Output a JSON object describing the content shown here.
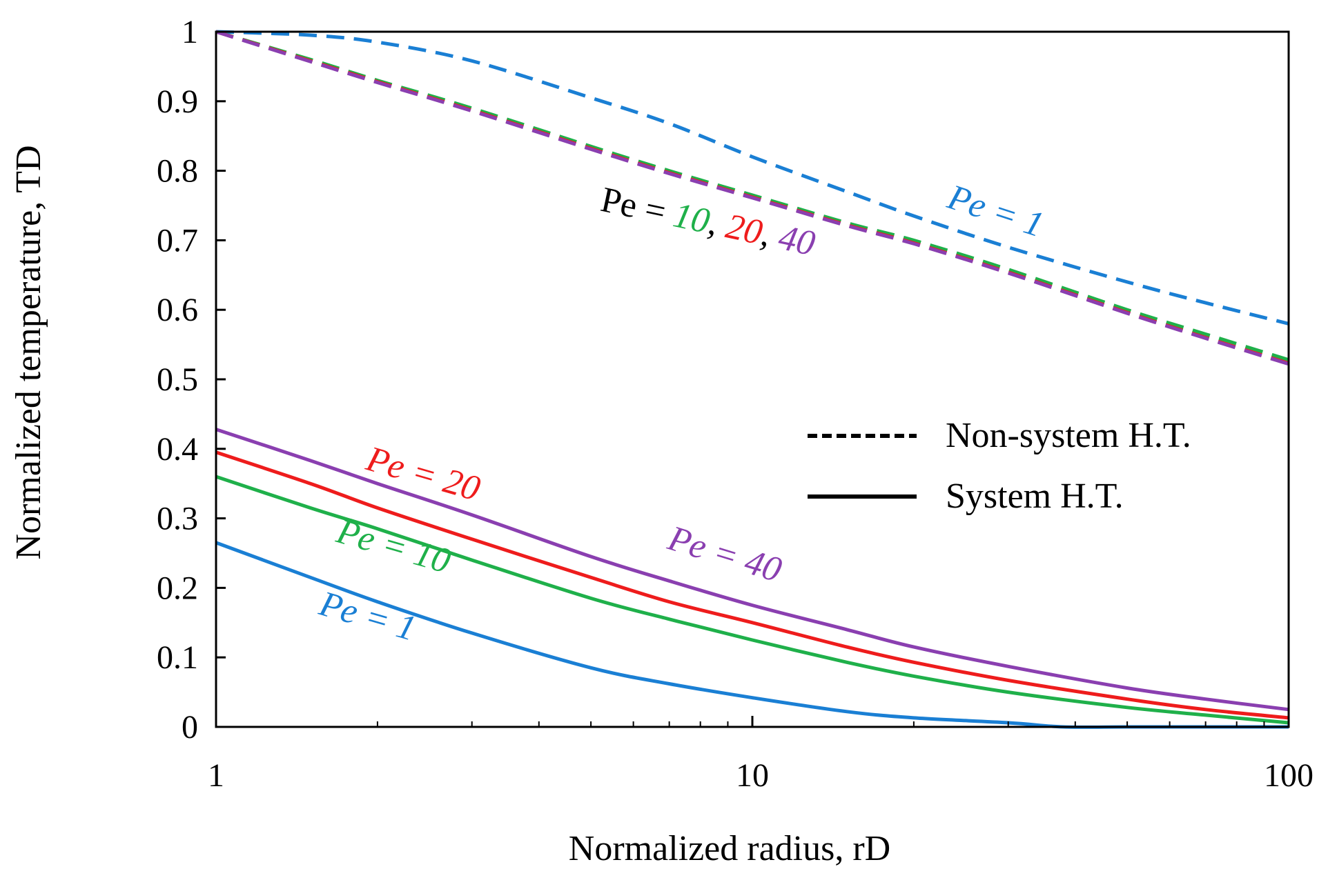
{
  "chart_data": {
    "type": "line",
    "xlabel": "Normalized radius, rD",
    "ylabel": "Normalized temperature, TD",
    "xscale": "log",
    "xlim": [
      1,
      100
    ],
    "ylim": [
      0,
      1
    ],
    "xticks": [
      "1",
      "10",
      "100"
    ],
    "yticks": [
      "0",
      "0.1",
      "0.2",
      "0.3",
      "0.4",
      "0.5",
      "0.6",
      "0.7",
      "0.8",
      "0.9",
      "1"
    ],
    "legend": {
      "placement": "center-right",
      "entries": [
        {
          "label": "Non-system H.T.",
          "style": "dashed"
        },
        {
          "label": "System H.T.",
          "style": "solid"
        }
      ]
    },
    "series": [
      {
        "name": "Non-system H.T., Pe = 1",
        "style": "dashed",
        "color": "#1a7fd4",
        "x": [
          1,
          1.5,
          2,
          3,
          5,
          7,
          10,
          15,
          20,
          30,
          50,
          70,
          100
        ],
        "y": [
          1.0,
          0.995,
          0.985,
          0.958,
          0.905,
          0.868,
          0.82,
          0.77,
          0.735,
          0.69,
          0.64,
          0.61,
          0.58
        ]
      },
      {
        "name": "Non-system H.T., Pe = 10",
        "style": "dashed",
        "color": "#1fb04a",
        "x": [
          1,
          1.5,
          2,
          3,
          5,
          7,
          10,
          15,
          20,
          30,
          50,
          70,
          100
        ],
        "y": [
          1.0,
          0.96,
          0.93,
          0.89,
          0.835,
          0.8,
          0.765,
          0.725,
          0.7,
          0.658,
          0.6,
          0.565,
          0.528
        ]
      },
      {
        "name": "Non-system H.T., Pe = 20",
        "style": "dashed",
        "color": "#ee1c1c",
        "x": [
          1,
          1.5,
          2,
          3,
          5,
          7,
          10,
          15,
          20,
          30,
          50,
          70,
          100
        ],
        "y": [
          1.0,
          0.958,
          0.928,
          0.887,
          0.832,
          0.797,
          0.762,
          0.722,
          0.696,
          0.654,
          0.596,
          0.56,
          0.523
        ]
      },
      {
        "name": "Non-system H.T., Pe = 40",
        "style": "dashed",
        "color": "#8a3fb0",
        "x": [
          1,
          1.5,
          2,
          3,
          5,
          7,
          10,
          15,
          20,
          30,
          50,
          70,
          100
        ],
        "y": [
          1.0,
          0.957,
          0.927,
          0.886,
          0.831,
          0.796,
          0.761,
          0.721,
          0.695,
          0.653,
          0.595,
          0.559,
          0.522
        ]
      },
      {
        "name": "System H.T., Pe = 1",
        "style": "solid",
        "color": "#1a7fd4",
        "x": [
          1,
          1.5,
          2,
          3,
          5,
          7,
          10,
          15,
          20,
          30,
          38,
          50,
          70,
          100
        ],
        "y": [
          0.265,
          0.215,
          0.18,
          0.135,
          0.085,
          0.062,
          0.042,
          0.022,
          0.013,
          0.006,
          0.0,
          0.0,
          0.0,
          0.0
        ]
      },
      {
        "name": "System H.T., Pe = 10",
        "style": "solid",
        "color": "#1fb04a",
        "x": [
          1,
          1.5,
          2,
          3,
          5,
          7,
          10,
          15,
          20,
          30,
          50,
          70,
          100
        ],
        "y": [
          0.36,
          0.315,
          0.285,
          0.24,
          0.185,
          0.155,
          0.125,
          0.093,
          0.073,
          0.05,
          0.028,
          0.017,
          0.006
        ]
      },
      {
        "name": "System H.T., Pe = 20",
        "style": "solid",
        "color": "#ee1c1c",
        "x": [
          1,
          1.5,
          2,
          3,
          5,
          7,
          10,
          15,
          20,
          30,
          50,
          70,
          100
        ],
        "y": [
          0.395,
          0.35,
          0.315,
          0.27,
          0.215,
          0.18,
          0.15,
          0.115,
          0.093,
          0.067,
          0.04,
          0.025,
          0.013
        ]
      },
      {
        "name": "System H.T., Pe = 40",
        "style": "solid",
        "color": "#8a3fb0",
        "x": [
          1,
          1.5,
          2,
          3,
          5,
          7,
          10,
          15,
          20,
          30,
          50,
          70,
          100
        ],
        "y": [
          0.428,
          0.383,
          0.35,
          0.305,
          0.245,
          0.21,
          0.175,
          0.14,
          0.115,
          0.087,
          0.056,
          0.04,
          0.025
        ]
      }
    ],
    "annotations": {
      "nonsystem_pe1": {
        "text": "Pe = 1",
        "color": "#1a7fd4"
      },
      "nonsystem_group_prefix": {
        "text": "Pe = ",
        "color": "#000000"
      },
      "nonsystem_group_10": {
        "text": "10",
        "color": "#1fb04a"
      },
      "nonsystem_group_comma1": {
        "text": ", ",
        "color": "#000000"
      },
      "nonsystem_group_20": {
        "text": "20",
        "color": "#ee1c1c"
      },
      "nonsystem_group_comma2": {
        "text": ", ",
        "color": "#000000"
      },
      "nonsystem_group_40": {
        "text": "40",
        "color": "#8a3fb0"
      },
      "system_pe20": {
        "text": "Pe = 20",
        "color": "#ee1c1c"
      },
      "system_pe10": {
        "text": "Pe = 10",
        "color": "#1fb04a"
      },
      "system_pe1": {
        "text": "Pe = 1",
        "color": "#1a7fd4"
      },
      "system_pe40": {
        "text": "Pe = 40",
        "color": "#8a3fb0"
      }
    }
  }
}
